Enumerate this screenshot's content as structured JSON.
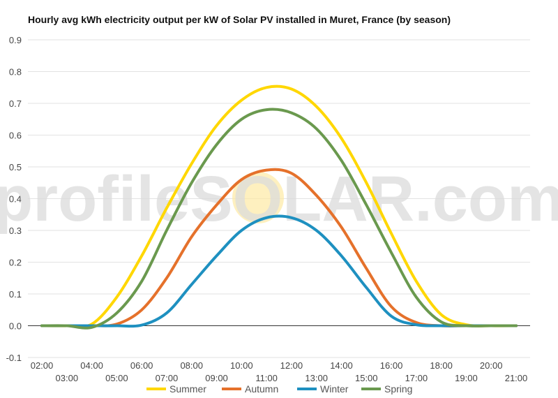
{
  "chart_data": {
    "type": "line",
    "title": "Hourly avg kWh electricity output per kW of Solar PV installed in Muret, France (by season)",
    "xlabel": "",
    "ylabel": "",
    "x": [
      "02:00",
      "03:00",
      "04:00",
      "05:00",
      "06:00",
      "07:00",
      "08:00",
      "09:00",
      "10:00",
      "11:00",
      "12:00",
      "13:00",
      "14:00",
      "15:00",
      "16:00",
      "17:00",
      "18:00",
      "19:00",
      "20:00",
      "21:00"
    ],
    "ylim": [
      -0.1,
      0.9
    ],
    "yticks": [
      "-0.1",
      "0.0",
      "0.1",
      "0.2",
      "0.3",
      "0.4",
      "0.5",
      "0.6",
      "0.7",
      "0.8",
      "0.9"
    ],
    "grid": true,
    "legend_position": "bottom",
    "series": [
      {
        "name": "Summer",
        "color": "#FFD700",
        "values": [
          0,
          0,
          0.005,
          0.09,
          0.22,
          0.37,
          0.51,
          0.63,
          0.71,
          0.75,
          0.745,
          0.69,
          0.59,
          0.45,
          0.29,
          0.14,
          0.035,
          0.003,
          0,
          0
        ]
      },
      {
        "name": "Autumn",
        "color": "#E5712B",
        "values": [
          0,
          0,
          0,
          0.005,
          0.05,
          0.15,
          0.28,
          0.38,
          0.46,
          0.49,
          0.48,
          0.41,
          0.31,
          0.18,
          0.06,
          0.01,
          0,
          0,
          0,
          0
        ]
      },
      {
        "name": "Winter",
        "color": "#1E90C0",
        "values": [
          0,
          0,
          0,
          0,
          0.002,
          0.04,
          0.13,
          0.22,
          0.3,
          0.34,
          0.34,
          0.3,
          0.22,
          0.12,
          0.03,
          0.003,
          0,
          0,
          0,
          0
        ]
      },
      {
        "name": "Spring",
        "color": "#6A994E",
        "values": [
          0,
          0,
          -0.005,
          0.04,
          0.14,
          0.3,
          0.45,
          0.57,
          0.65,
          0.68,
          0.67,
          0.62,
          0.52,
          0.38,
          0.23,
          0.09,
          0.012,
          0,
          0,
          0
        ]
      }
    ]
  },
  "watermark": {
    "text": "profileSOLAR.com"
  }
}
